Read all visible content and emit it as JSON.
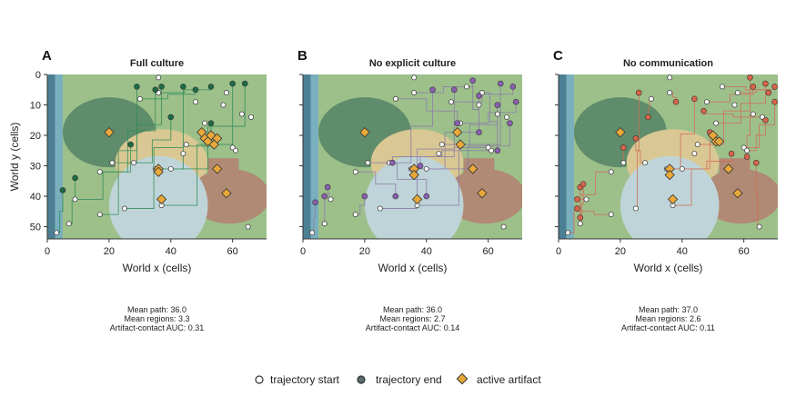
{
  "chart_data": [
    {
      "type": "scatter",
      "panel_label": "A",
      "title": "Full culture",
      "xlabel": "World x (cells)",
      "ylabel": "World y (cells)",
      "xlim": [
        0,
        71
      ],
      "ylim": [
        54,
        0
      ],
      "xticks": [
        "0",
        "20",
        "40",
        "60"
      ],
      "yticks": [
        "0",
        "10",
        "20",
        "30",
        "40",
        "50"
      ],
      "trail_color": "#2e8b57",
      "end_color": "#1e6b45",
      "starts": [
        [
          3,
          52
        ],
        [
          7,
          49
        ],
        [
          9,
          41
        ],
        [
          17,
          46
        ],
        [
          17,
          32
        ],
        [
          21,
          29
        ],
        [
          28,
          29
        ],
        [
          25,
          44
        ],
        [
          30,
          8
        ],
        [
          36,
          6
        ],
        [
          35,
          31
        ],
        [
          37,
          43
        ],
        [
          40,
          31
        ],
        [
          45,
          23
        ],
        [
          48,
          9
        ],
        [
          51,
          16
        ],
        [
          53,
          4
        ],
        [
          58,
          6
        ],
        [
          60,
          24
        ],
        [
          61,
          25
        ],
        [
          63,
          13
        ],
        [
          65,
          50
        ],
        [
          66,
          14
        ],
        [
          36,
          1
        ],
        [
          44,
          26
        ],
        [
          57,
          10
        ]
      ],
      "ends": [
        [
          5,
          38
        ],
        [
          9,
          34
        ],
        [
          27,
          23
        ],
        [
          29,
          4
        ],
        [
          35,
          5
        ],
        [
          37,
          4
        ],
        [
          40,
          14
        ],
        [
          44,
          4
        ],
        [
          48,
          5
        ],
        [
          53,
          4
        ],
        [
          53,
          16
        ],
        [
          60,
          3
        ],
        [
          64,
          3
        ]
      ],
      "artifacts": [
        [
          20,
          19
        ],
        [
          36,
          31
        ],
        [
          36,
          32
        ],
        [
          37,
          41
        ],
        [
          50,
          19
        ],
        [
          51,
          21
        ],
        [
          52,
          22
        ],
        [
          53,
          20
        ],
        [
          54,
          23
        ],
        [
          55,
          21
        ],
        [
          55,
          31
        ],
        [
          58,
          39
        ]
      ],
      "stats": [
        "Mean path: 36.0",
        "Mean regions: 3.3",
        "Artifact-contact AUC: 0.31"
      ]
    },
    {
      "type": "scatter",
      "panel_label": "B",
      "title": "No explicit culture",
      "xlabel": "World x (cells)",
      "ylabel": "",
      "xlim": [
        0,
        71
      ],
      "ylim": [
        54,
        0
      ],
      "xticks": [
        "0",
        "20",
        "40",
        "60"
      ],
      "yticks": [],
      "trail_color": "#8a7aa8",
      "end_color": "#8a5fb0",
      "starts": [
        [
          3,
          52
        ],
        [
          7,
          49
        ],
        [
          9,
          41
        ],
        [
          17,
          46
        ],
        [
          17,
          32
        ],
        [
          21,
          29
        ],
        [
          28,
          29
        ],
        [
          25,
          44
        ],
        [
          30,
          8
        ],
        [
          36,
          6
        ],
        [
          35,
          31
        ],
        [
          37,
          43
        ],
        [
          40,
          31
        ],
        [
          45,
          23
        ],
        [
          48,
          9
        ],
        [
          51,
          16
        ],
        [
          53,
          4
        ],
        [
          58,
          6
        ],
        [
          60,
          24
        ],
        [
          61,
          25
        ],
        [
          63,
          13
        ],
        [
          65,
          50
        ],
        [
          66,
          14
        ],
        [
          36,
          1
        ],
        [
          44,
          26
        ],
        [
          57,
          10
        ]
      ],
      "ends": [
        [
          4,
          42
        ],
        [
          7,
          40
        ],
        [
          8,
          37
        ],
        [
          20,
          40
        ],
        [
          30,
          40
        ],
        [
          40,
          40
        ],
        [
          42,
          5
        ],
        [
          49,
          5
        ],
        [
          50,
          16
        ],
        [
          55,
          2
        ],
        [
          57,
          7
        ],
        [
          64,
          3
        ],
        [
          67,
          16
        ],
        [
          63,
          10
        ],
        [
          68,
          4
        ],
        [
          69,
          9
        ],
        [
          57,
          19
        ],
        [
          63,
          25
        ],
        [
          38,
          30
        ],
        [
          29,
          29
        ]
      ],
      "artifacts": [
        [
          20,
          19
        ],
        [
          36,
          31
        ],
        [
          36,
          33
        ],
        [
          37,
          41
        ],
        [
          50,
          19
        ],
        [
          51,
          23
        ],
        [
          55,
          31
        ],
        [
          58,
          39
        ]
      ],
      "stats": [
        "Mean path: 36.0",
        "Mean regions: 2.7",
        "Artifact-contact AUC: 0.14"
      ]
    },
    {
      "type": "scatter",
      "panel_label": "C",
      "title": "No communication",
      "xlabel": "World x (cells)",
      "ylabel": "",
      "xlim": [
        0,
        71
      ],
      "ylim": [
        54,
        0
      ],
      "xticks": [
        "0",
        "20",
        "40",
        "60"
      ],
      "yticks": [],
      "trail_color": "#d26a55",
      "end_color": "#d9644a",
      "starts": [
        [
          3,
          52
        ],
        [
          7,
          49
        ],
        [
          9,
          41
        ],
        [
          17,
          46
        ],
        [
          17,
          32
        ],
        [
          21,
          29
        ],
        [
          28,
          29
        ],
        [
          25,
          44
        ],
        [
          30,
          8
        ],
        [
          36,
          6
        ],
        [
          35,
          31
        ],
        [
          37,
          43
        ],
        [
          40,
          31
        ],
        [
          45,
          23
        ],
        [
          48,
          9
        ],
        [
          51,
          16
        ],
        [
          53,
          4
        ],
        [
          58,
          6
        ],
        [
          60,
          24
        ],
        [
          61,
          25
        ],
        [
          63,
          13
        ],
        [
          65,
          50
        ],
        [
          66,
          14
        ],
        [
          36,
          1
        ],
        [
          44,
          26
        ],
        [
          57,
          10
        ]
      ],
      "ends": [
        [
          7,
          37
        ],
        [
          8,
          36
        ],
        [
          6,
          41
        ],
        [
          6,
          44
        ],
        [
          7,
          47
        ],
        [
          21,
          24
        ],
        [
          25,
          21
        ],
        [
          26,
          6
        ],
        [
          29,
          14
        ],
        [
          38,
          9
        ],
        [
          44,
          8
        ],
        [
          49,
          19
        ],
        [
          56,
          26
        ],
        [
          62,
          1
        ],
        [
          63,
          4
        ],
        [
          67,
          3
        ],
        [
          68,
          6
        ],
        [
          70,
          4
        ],
        [
          70,
          9
        ],
        [
          67,
          15
        ],
        [
          61,
          27
        ],
        [
          64,
          29
        ],
        [
          47,
          12
        ]
      ],
      "artifacts": [
        [
          20,
          19
        ],
        [
          36,
          31
        ],
        [
          36,
          33
        ],
        [
          37,
          41
        ],
        [
          50,
          20
        ],
        [
          51,
          22
        ],
        [
          52,
          22
        ],
        [
          55,
          31
        ],
        [
          58,
          39
        ]
      ],
      "stats": [
        "Mean path: 37.0",
        "Mean regions: 2.6",
        "Artifact-contact AUC: 0.11"
      ]
    }
  ],
  "legend": {
    "start_label": "trajectory start",
    "end_label": "trajectory end",
    "artifact_label": "active artifact"
  },
  "colors": {
    "land": "#9dc08b",
    "forest": "#5f8c6a",
    "sand": "#d9c893",
    "lake": "#bfd4d8",
    "rock": "#b08a74",
    "water_deep": "#4d7f94",
    "water_shallow": "#7ab0bd",
    "artifact": "#e8a83a",
    "marker_edge": "#333333"
  }
}
